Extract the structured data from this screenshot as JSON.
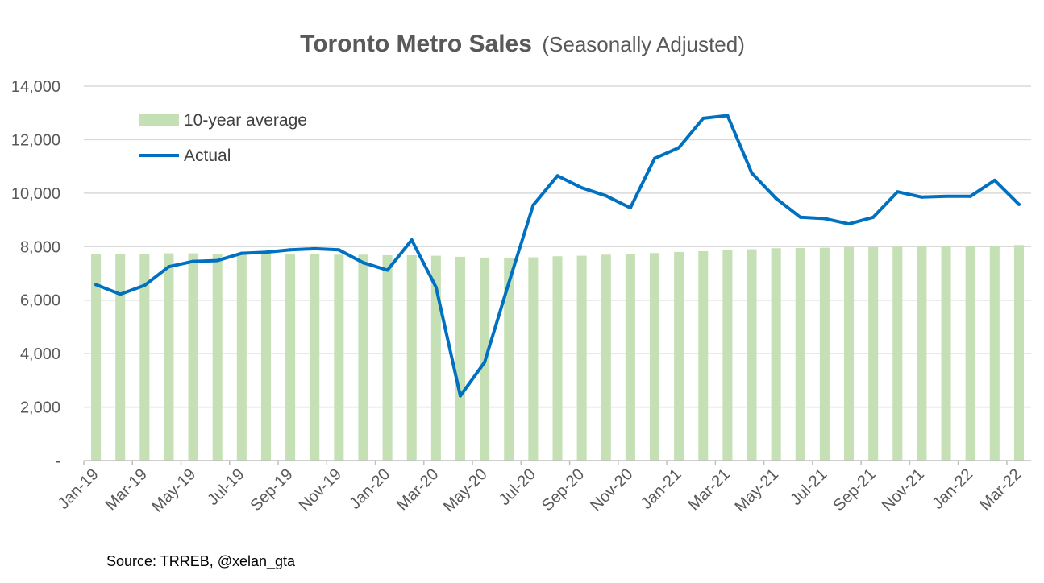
{
  "colors": {
    "bar": "#c5e0b4",
    "line": "#0070c0",
    "grid": "#d9d9d9",
    "axis": "#bfbfbf",
    "text": "#595959"
  },
  "chart_data": {
    "type": "bar",
    "title": "Toronto Metro Sales",
    "subtitle": "(Seasonally Adjusted)",
    "source": "Source: TRREB, @xelan_gta",
    "ylim": [
      0,
      14000
    ],
    "y_ticks": [
      0,
      2000,
      4000,
      6000,
      8000,
      10000,
      12000,
      14000
    ],
    "y_tick_labels": [
      "-",
      "2,000",
      "4,000",
      "6,000",
      "8,000",
      "10,000",
      "12,000",
      "14,000"
    ],
    "grid": true,
    "legend_position": "top-left",
    "categories": [
      "Jan-19",
      "Feb-19",
      "Mar-19",
      "Apr-19",
      "May-19",
      "Jun-19",
      "Jul-19",
      "Aug-19",
      "Sep-19",
      "Oct-19",
      "Nov-19",
      "Dec-19",
      "Jan-20",
      "Feb-20",
      "Mar-20",
      "Apr-20",
      "May-20",
      "Jun-20",
      "Jul-20",
      "Aug-20",
      "Sep-20",
      "Oct-20",
      "Nov-20",
      "Dec-20",
      "Jan-21",
      "Feb-21",
      "Mar-21",
      "Apr-21",
      "May-21",
      "Jun-21",
      "Jul-21",
      "Aug-21",
      "Sep-21",
      "Oct-21",
      "Nov-21",
      "Dec-21",
      "Jan-22",
      "Feb-22",
      "Mar-22"
    ],
    "x_tick_labels": [
      "Jan-19",
      "Mar-19",
      "May-19",
      "Jul-19",
      "Sep-19",
      "Nov-19",
      "Jan-20",
      "Mar-20",
      "May-20",
      "Jul-20",
      "Sep-20",
      "Nov-20",
      "Jan-21",
      "Mar-21",
      "May-21",
      "Jul-21",
      "Sep-21",
      "Nov-21",
      "Jan-22",
      "Mar-22"
    ],
    "series": [
      {
        "name": "10-year average",
        "type": "bar",
        "values": [
          7720,
          7720,
          7720,
          7750,
          7750,
          7730,
          7720,
          7720,
          7740,
          7740,
          7700,
          7700,
          7680,
          7680,
          7660,
          7620,
          7590,
          7590,
          7600,
          7640,
          7660,
          7700,
          7730,
          7760,
          7800,
          7830,
          7870,
          7900,
          7940,
          7950,
          7960,
          7980,
          7980,
          8000,
          8010,
          8020,
          8030,
          8040,
          8060
        ]
      },
      {
        "name": "Actual",
        "type": "line",
        "values": [
          6580,
          6220,
          6550,
          7250,
          7450,
          7480,
          7750,
          7790,
          7880,
          7920,
          7880,
          7400,
          7120,
          8250,
          6480,
          2420,
          3680,
          6650,
          9550,
          10650,
          10200,
          9900,
          9450,
          11300,
          11700,
          12800,
          12900,
          10750,
          9800,
          9100,
          9050,
          8850,
          9100,
          10050,
          9850,
          9880,
          9880,
          10480,
          9580
        ]
      }
    ]
  }
}
